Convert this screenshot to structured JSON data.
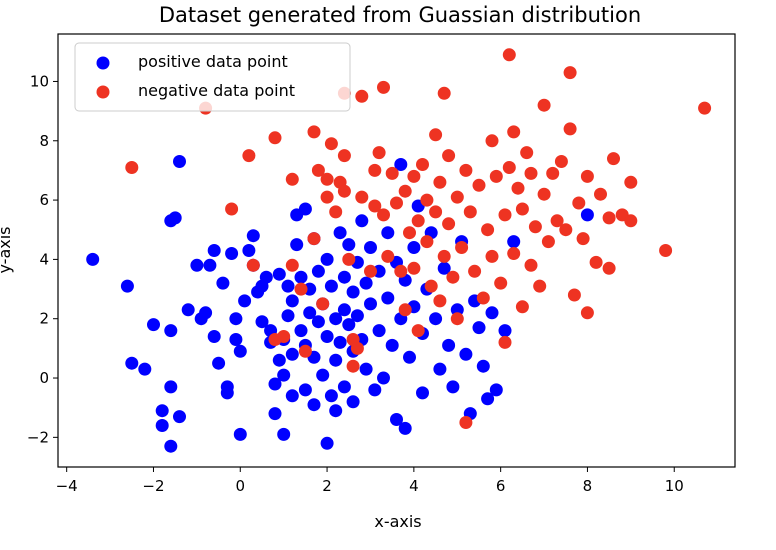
{
  "chart_data": {
    "type": "scatter",
    "title": "Dataset generated from Guassian distribution",
    "xlabel": "x-axis",
    "ylabel": "y-axis",
    "xlim": [
      -4.2,
      11.4
    ],
    "ylim": [
      -3.0,
      11.6
    ],
    "xticks": [
      -4,
      -2,
      0,
      2,
      4,
      6,
      8,
      10
    ],
    "yticks": [
      -2,
      0,
      2,
      4,
      6,
      8,
      10
    ],
    "xtick_labels": [
      "−4",
      "−2",
      "0",
      "2",
      "4",
      "6",
      "8",
      "10"
    ],
    "ytick_labels": [
      "−2",
      "0",
      "2",
      "4",
      "6",
      "8",
      "10"
    ],
    "grid": false,
    "legend_position": "top-left",
    "series": [
      {
        "name": "positive data point",
        "color": "#0000ff",
        "points": [
          [
            -3.4,
            4.0
          ],
          [
            -2.6,
            3.1
          ],
          [
            -2.5,
            0.5
          ],
          [
            -2.2,
            0.3
          ],
          [
            -2.0,
            1.8
          ],
          [
            -1.8,
            -1.6
          ],
          [
            -1.8,
            -1.1
          ],
          [
            -1.6,
            -2.3
          ],
          [
            -1.6,
            -0.3
          ],
          [
            -1.6,
            1.6
          ],
          [
            -1.6,
            5.3
          ],
          [
            -1.5,
            5.4
          ],
          [
            -1.4,
            7.3
          ],
          [
            -1.4,
            -1.3
          ],
          [
            -1.2,
            2.3
          ],
          [
            -1.0,
            3.8
          ],
          [
            -0.9,
            2.0
          ],
          [
            -0.8,
            2.2
          ],
          [
            -0.7,
            3.8
          ],
          [
            -0.6,
            4.3
          ],
          [
            -0.6,
            1.4
          ],
          [
            -0.5,
            0.5
          ],
          [
            -0.4,
            3.2
          ],
          [
            -0.3,
            -0.3
          ],
          [
            -0.3,
            -0.5
          ],
          [
            -0.2,
            4.2
          ],
          [
            -0.1,
            1.3
          ],
          [
            -0.1,
            2.0
          ],
          [
            0.0,
            0.9
          ],
          [
            0.0,
            -1.9
          ],
          [
            0.1,
            2.6
          ],
          [
            0.2,
            4.3
          ],
          [
            0.3,
            3.8
          ],
          [
            0.3,
            4.8
          ],
          [
            0.4,
            2.9
          ],
          [
            0.5,
            1.9
          ],
          [
            0.5,
            3.1
          ],
          [
            0.6,
            3.4
          ],
          [
            0.7,
            1.6
          ],
          [
            0.7,
            1.2
          ],
          [
            0.8,
            -0.2
          ],
          [
            0.8,
            -1.2
          ],
          [
            0.9,
            0.6
          ],
          [
            0.9,
            3.5
          ],
          [
            1.0,
            1.3
          ],
          [
            1.0,
            0.1
          ],
          [
            1.0,
            -1.9
          ],
          [
            1.1,
            2.1
          ],
          [
            1.1,
            3.1
          ],
          [
            1.2,
            2.6
          ],
          [
            1.2,
            0.8
          ],
          [
            1.2,
            -0.6
          ],
          [
            1.3,
            5.5
          ],
          [
            1.3,
            4.5
          ],
          [
            1.4,
            1.6
          ],
          [
            1.4,
            3.4
          ],
          [
            1.5,
            5.7
          ],
          [
            1.5,
            1.1
          ],
          [
            1.5,
            -0.4
          ],
          [
            1.6,
            3.0
          ],
          [
            1.6,
            2.2
          ],
          [
            1.7,
            4.7
          ],
          [
            1.7,
            0.7
          ],
          [
            1.7,
            -0.9
          ],
          [
            1.8,
            3.6
          ],
          [
            1.8,
            1.9
          ],
          [
            1.9,
            2.5
          ],
          [
            1.9,
            0.1
          ],
          [
            2.0,
            4.0
          ],
          [
            2.0,
            1.4
          ],
          [
            2.0,
            -2.2
          ],
          [
            2.1,
            3.1
          ],
          [
            2.1,
            -0.6
          ],
          [
            2.2,
            2.0
          ],
          [
            2.2,
            0.6
          ],
          [
            2.2,
            -1.1
          ],
          [
            2.3,
            4.9
          ],
          [
            2.3,
            1.2
          ],
          [
            2.4,
            3.4
          ],
          [
            2.4,
            2.3
          ],
          [
            2.4,
            -0.3
          ],
          [
            2.5,
            4.5
          ],
          [
            2.5,
            1.8
          ],
          [
            2.6,
            2.9
          ],
          [
            2.6,
            0.9
          ],
          [
            2.6,
            -0.8
          ],
          [
            2.7,
            3.9
          ],
          [
            2.7,
            2.1
          ],
          [
            2.8,
            1.3
          ],
          [
            2.8,
            5.3
          ],
          [
            2.9,
            3.2
          ],
          [
            2.9,
            0.3
          ],
          [
            3.0,
            4.4
          ],
          [
            3.0,
            2.5
          ],
          [
            3.1,
            -0.4
          ],
          [
            3.2,
            3.6
          ],
          [
            3.2,
            1.6
          ],
          [
            3.3,
            0.0
          ],
          [
            3.4,
            2.7
          ],
          [
            3.4,
            4.9
          ],
          [
            3.5,
            1.1
          ],
          [
            3.6,
            3.9
          ],
          [
            3.6,
            -1.4
          ],
          [
            3.7,
            7.2
          ],
          [
            3.7,
            2.0
          ],
          [
            3.8,
            3.3
          ],
          [
            3.8,
            -1.7
          ],
          [
            3.9,
            0.7
          ],
          [
            4.0,
            4.4
          ],
          [
            4.0,
            2.4
          ],
          [
            4.1,
            5.8
          ],
          [
            4.2,
            1.5
          ],
          [
            4.2,
            -0.5
          ],
          [
            4.3,
            3.0
          ],
          [
            4.4,
            4.9
          ],
          [
            4.5,
            2.0
          ],
          [
            4.6,
            0.3
          ],
          [
            4.7,
            3.7
          ],
          [
            4.8,
            1.1
          ],
          [
            4.9,
            -0.3
          ],
          [
            5.0,
            2.3
          ],
          [
            5.1,
            4.6
          ],
          [
            5.2,
            0.8
          ],
          [
            5.3,
            -1.2
          ],
          [
            5.4,
            2.6
          ],
          [
            5.5,
            1.7
          ],
          [
            5.6,
            0.4
          ],
          [
            5.7,
            -0.7
          ],
          [
            5.8,
            2.2
          ],
          [
            5.9,
            -0.4
          ],
          [
            6.1,
            1.6
          ],
          [
            6.3,
            4.6
          ],
          [
            8.0,
            5.5
          ]
        ]
      },
      {
        "name": "negative data point",
        "color": "#ee3322",
        "points": [
          [
            -2.5,
            7.1
          ],
          [
            -0.8,
            9.1
          ],
          [
            -0.2,
            5.7
          ],
          [
            0.2,
            7.5
          ],
          [
            0.3,
            3.8
          ],
          [
            0.8,
            8.1
          ],
          [
            0.8,
            1.3
          ],
          [
            1.0,
            1.4
          ],
          [
            1.2,
            6.7
          ],
          [
            1.2,
            3.8
          ],
          [
            1.4,
            3.0
          ],
          [
            1.5,
            0.9
          ],
          [
            1.7,
            8.3
          ],
          [
            1.7,
            4.7
          ],
          [
            1.8,
            7.0
          ],
          [
            1.9,
            2.5
          ],
          [
            2.0,
            6.1
          ],
          [
            2.0,
            6.7
          ],
          [
            2.1,
            7.9
          ],
          [
            2.2,
            5.6
          ],
          [
            2.3,
            6.6
          ],
          [
            2.4,
            7.5
          ],
          [
            2.4,
            6.3
          ],
          [
            2.4,
            9.6
          ],
          [
            2.5,
            4.0
          ],
          [
            2.6,
            0.4
          ],
          [
            2.6,
            1.3
          ],
          [
            2.7,
            1.0
          ],
          [
            2.8,
            6.1
          ],
          [
            2.8,
            9.5
          ],
          [
            3.0,
            3.6
          ],
          [
            3.1,
            5.8
          ],
          [
            3.1,
            7.0
          ],
          [
            3.2,
            7.6
          ],
          [
            3.3,
            9.8
          ],
          [
            3.3,
            5.5
          ],
          [
            3.4,
            4.1
          ],
          [
            3.5,
            6.9
          ],
          [
            3.6,
            5.9
          ],
          [
            3.7,
            3.6
          ],
          [
            3.8,
            6.3
          ],
          [
            3.8,
            2.3
          ],
          [
            3.9,
            4.9
          ],
          [
            4.0,
            6.8
          ],
          [
            4.0,
            3.7
          ],
          [
            4.1,
            5.3
          ],
          [
            4.1,
            1.6
          ],
          [
            4.2,
            7.2
          ],
          [
            4.3,
            4.6
          ],
          [
            4.3,
            6.0
          ],
          [
            4.4,
            3.1
          ],
          [
            4.5,
            8.2
          ],
          [
            4.5,
            5.6
          ],
          [
            4.6,
            2.6
          ],
          [
            4.6,
            6.6
          ],
          [
            4.7,
            9.6
          ],
          [
            4.7,
            4.1
          ],
          [
            4.8,
            7.5
          ],
          [
            4.8,
            5.2
          ],
          [
            4.9,
            3.4
          ],
          [
            5.0,
            6.1
          ],
          [
            5.0,
            2.0
          ],
          [
            5.1,
            4.4
          ],
          [
            5.2,
            7.0
          ],
          [
            5.2,
            -1.5
          ],
          [
            5.3,
            5.6
          ],
          [
            5.4,
            3.6
          ],
          [
            5.5,
            6.5
          ],
          [
            5.6,
            2.7
          ],
          [
            5.7,
            5.0
          ],
          [
            5.8,
            8.0
          ],
          [
            5.8,
            4.1
          ],
          [
            5.9,
            6.8
          ],
          [
            6.0,
            3.2
          ],
          [
            6.1,
            5.5
          ],
          [
            6.1,
            1.2
          ],
          [
            6.2,
            10.9
          ],
          [
            6.2,
            7.1
          ],
          [
            6.3,
            4.2
          ],
          [
            6.3,
            8.3
          ],
          [
            6.4,
            6.4
          ],
          [
            6.5,
            2.4
          ],
          [
            6.5,
            5.7
          ],
          [
            6.6,
            7.6
          ],
          [
            6.7,
            3.8
          ],
          [
            6.7,
            6.9
          ],
          [
            6.8,
            5.1
          ],
          [
            6.9,
            3.1
          ],
          [
            7.0,
            6.2
          ],
          [
            7.0,
            9.2
          ],
          [
            7.1,
            4.6
          ],
          [
            7.2,
            6.9
          ],
          [
            7.3,
            5.3
          ],
          [
            7.4,
            7.3
          ],
          [
            7.5,
            5.0
          ],
          [
            7.6,
            8.4
          ],
          [
            7.6,
            10.3
          ],
          [
            7.7,
            2.8
          ],
          [
            7.8,
            5.9
          ],
          [
            7.9,
            4.7
          ],
          [
            8.0,
            2.2
          ],
          [
            8.0,
            6.8
          ],
          [
            8.2,
            3.9
          ],
          [
            8.3,
            6.2
          ],
          [
            8.5,
            3.7
          ],
          [
            8.5,
            5.4
          ],
          [
            8.6,
            7.4
          ],
          [
            8.8,
            5.5
          ],
          [
            9.0,
            6.6
          ],
          [
            9.0,
            5.3
          ],
          [
            9.8,
            4.3
          ],
          [
            10.7,
            9.1
          ]
        ]
      }
    ]
  }
}
